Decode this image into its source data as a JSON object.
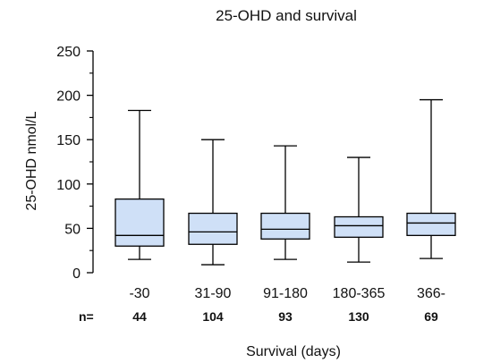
{
  "chart_data": {
    "type": "boxplot",
    "title": "25-OHD and survival",
    "xlabel": "Survival (days)",
    "ylabel": "25-OHD nmol/L",
    "ylim": [
      0,
      250
    ],
    "yticks": [
      0,
      50,
      100,
      150,
      200,
      250
    ],
    "minor_ticks": [
      25,
      75,
      125,
      175,
      225
    ],
    "categories": [
      "-30",
      "31-90",
      "91-180",
      "180-365",
      "366-"
    ],
    "n_prefix": "n=",
    "n_values": [
      "44",
      "104",
      "93",
      "130",
      "69"
    ],
    "grid": false,
    "box_color": "#cfe0f7",
    "line_color": "#000000",
    "boxes": [
      {
        "min": 15,
        "q1": 30,
        "median": 42,
        "q3": 83,
        "max": 183
      },
      {
        "min": 9,
        "q1": 32,
        "median": 46,
        "q3": 67,
        "max": 150
      },
      {
        "min": 15,
        "q1": 38,
        "median": 49,
        "q3": 67,
        "max": 143
      },
      {
        "min": 12,
        "q1": 40,
        "median": 53,
        "q3": 63,
        "max": 130
      },
      {
        "min": 16,
        "q1": 42,
        "median": 56,
        "q3": 67,
        "max": 195
      }
    ]
  }
}
